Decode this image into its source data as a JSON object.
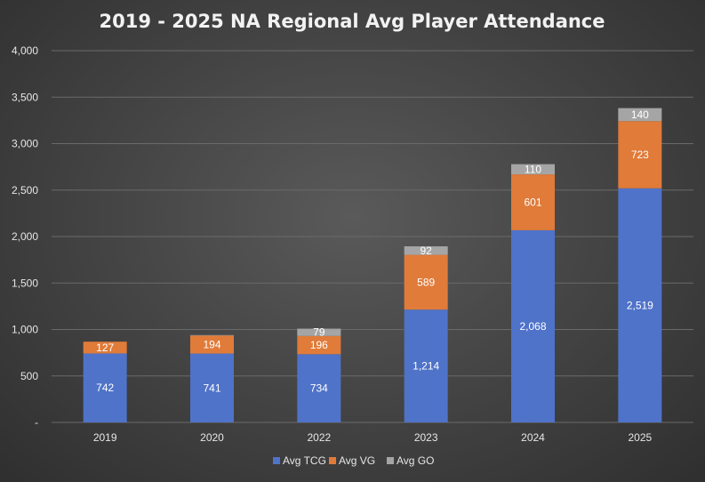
{
  "chart_data": {
    "type": "bar",
    "stacked": true,
    "title": "2019 - 2025 NA Regional Avg Player Attendance",
    "categories": [
      "2019",
      "2020",
      "2022",
      "2023",
      "2024",
      "2025"
    ],
    "series": [
      {
        "name": "Avg TCG",
        "color": "#4f73c9",
        "values": [
          742,
          741,
          734,
          1214,
          2068,
          2519
        ],
        "labels": [
          "742",
          "741",
          "734",
          "1,214",
          "2,068",
          "2,519"
        ]
      },
      {
        "name": "Avg VG",
        "color": "#e07b39",
        "values": [
          127,
          194,
          196,
          589,
          601,
          723
        ],
        "labels": [
          "127",
          "194",
          "196",
          "589",
          "601",
          "723"
        ]
      },
      {
        "name": "Avg GO",
        "color": "#a5a5a5",
        "values": [
          0,
          5,
          79,
          92,
          110,
          140
        ],
        "labels": [
          "",
          "",
          "79",
          "92",
          "110",
          "140"
        ]
      }
    ],
    "y_ticks": [
      0,
      500,
      1000,
      1500,
      2000,
      2500,
      3000,
      3500,
      4000
    ],
    "y_tick_labels": [
      "-",
      "500",
      "1,000",
      "1,500",
      "2,000",
      "2,500",
      "3,000",
      "3,500",
      "4,000"
    ],
    "ylim": [
      0,
      4000
    ],
    "grid": true,
    "legend_position": "bottom",
    "xlabel": "",
    "ylabel": ""
  }
}
